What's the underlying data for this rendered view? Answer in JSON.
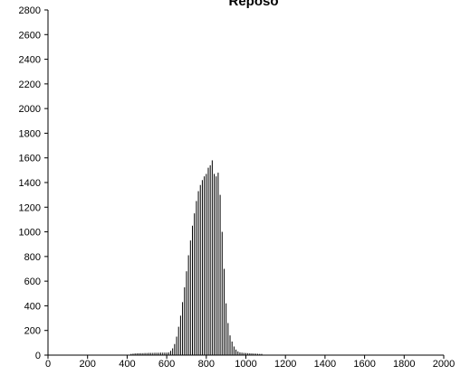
{
  "chart_data": {
    "type": "bar",
    "title": "Reposo",
    "xlabel": "",
    "ylabel": "",
    "xlim": [
      0,
      2000
    ],
    "ylim": [
      0,
      2800
    ],
    "x_ticks": [
      0,
      200,
      400,
      600,
      800,
      1000,
      1200,
      1400,
      1600,
      1800,
      2000
    ],
    "y_ticks": [
      0,
      200,
      400,
      600,
      800,
      1000,
      1200,
      1400,
      1600,
      1800,
      2000,
      2200,
      2400,
      2600,
      2800
    ],
    "grid": false,
    "legend": "none",
    "bar_color": "#000000",
    "x": [
      420,
      430,
      440,
      450,
      460,
      470,
      480,
      490,
      500,
      510,
      520,
      530,
      540,
      550,
      560,
      570,
      580,
      590,
      600,
      610,
      620,
      630,
      640,
      650,
      660,
      670,
      680,
      690,
      700,
      710,
      720,
      730,
      740,
      750,
      760,
      770,
      780,
      790,
      800,
      810,
      820,
      830,
      840,
      850,
      860,
      870,
      880,
      890,
      900,
      910,
      920,
      930,
      940,
      950,
      960,
      970,
      980,
      990,
      1000,
      1010,
      1020,
      1030,
      1040,
      1050,
      1060,
      1070,
      1080
    ],
    "values": [
      10,
      12,
      14,
      15,
      15,
      16,
      16,
      17,
      17,
      18,
      18,
      18,
      19,
      19,
      19,
      20,
      20,
      20,
      20,
      22,
      35,
      55,
      90,
      150,
      230,
      320,
      430,
      550,
      680,
      810,
      930,
      1050,
      1150,
      1250,
      1330,
      1380,
      1420,
      1450,
      1470,
      1520,
      1540,
      1580,
      1470,
      1450,
      1480,
      1300,
      1000,
      700,
      420,
      260,
      160,
      110,
      70,
      45,
      30,
      22,
      20,
      18,
      17,
      16,
      15,
      14,
      13,
      12,
      11,
      10,
      10
    ]
  }
}
